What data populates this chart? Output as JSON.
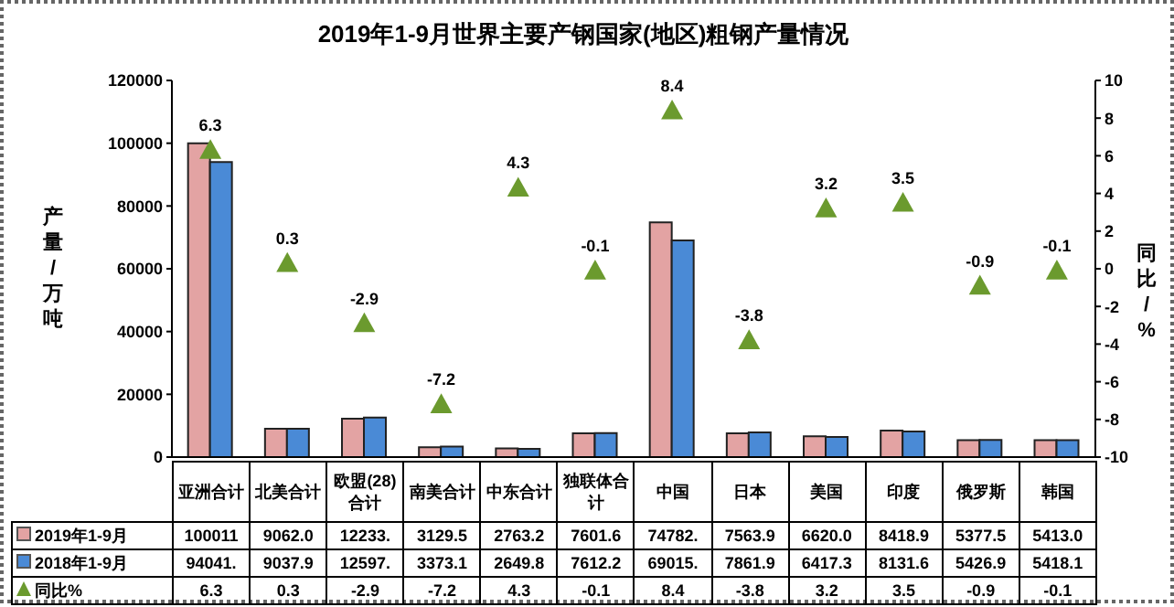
{
  "chart_data": {
    "type": "bar",
    "title": "2019年1-9月世界主要产钢国家(地区)粗钢产量情况",
    "ylabel": "产量/万吨",
    "y2label": "同比/%",
    "categories": [
      "亚洲合计",
      "北美合计",
      "欧盟(28)合计",
      "南美合计",
      "中东合计",
      "独联体合计",
      "中国",
      "日本",
      "美国",
      "印度",
      "俄罗斯",
      "韩国"
    ],
    "series": [
      {
        "name": "2019年1-9月",
        "color": "#e3a3a3",
        "values": [
          100011,
          9062.0,
          12233,
          3129.5,
          2763.2,
          7601.6,
          74782,
          7563.9,
          6620.0,
          8418.9,
          5377.5,
          5413.0
        ],
        "value_labels": [
          "100011",
          "9062.0",
          "12233.",
          "3129.5",
          "2763.2",
          "7601.6",
          "74782.",
          "7563.9",
          "6620.0",
          "8418.9",
          "5377.5",
          "5413.0"
        ]
      },
      {
        "name": "2018年1-9月",
        "color": "#4a8ad6",
        "values": [
          94041,
          9037.9,
          12597,
          3373.1,
          2649.8,
          7612.2,
          69015,
          7861.9,
          6417.3,
          8131.6,
          5426.9,
          5418.1
        ],
        "value_labels": [
          "94041.",
          "9037.9",
          "12597.",
          "3373.1",
          "2649.8",
          "7612.2",
          "69015.",
          "7861.9",
          "6417.3",
          "8131.6",
          "5426.9",
          "5418.1"
        ]
      },
      {
        "name": "同比%",
        "type": "scatter",
        "axis": "y2",
        "color": "#6b9a2e",
        "marker": "triangle",
        "values": [
          6.3,
          0.3,
          -2.9,
          -7.2,
          4.3,
          -0.1,
          8.4,
          -3.8,
          3.2,
          3.5,
          -0.9,
          -0.1
        ],
        "value_labels": [
          "6.3",
          "0.3",
          "-2.9",
          "-7.2",
          "4.3",
          "-0.1",
          "8.4",
          "-3.8",
          "3.2",
          "3.5",
          "-0.9",
          "-0.1"
        ]
      }
    ],
    "ylim": [
      0,
      120000
    ],
    "yticks": [
      0,
      20000,
      40000,
      60000,
      80000,
      100000,
      120000
    ],
    "y2lim": [
      -10,
      10
    ],
    "y2ticks": [
      -10,
      -8,
      -6,
      -4,
      -2,
      0,
      2,
      4,
      6,
      8,
      10
    ],
    "legend": "bottom"
  }
}
